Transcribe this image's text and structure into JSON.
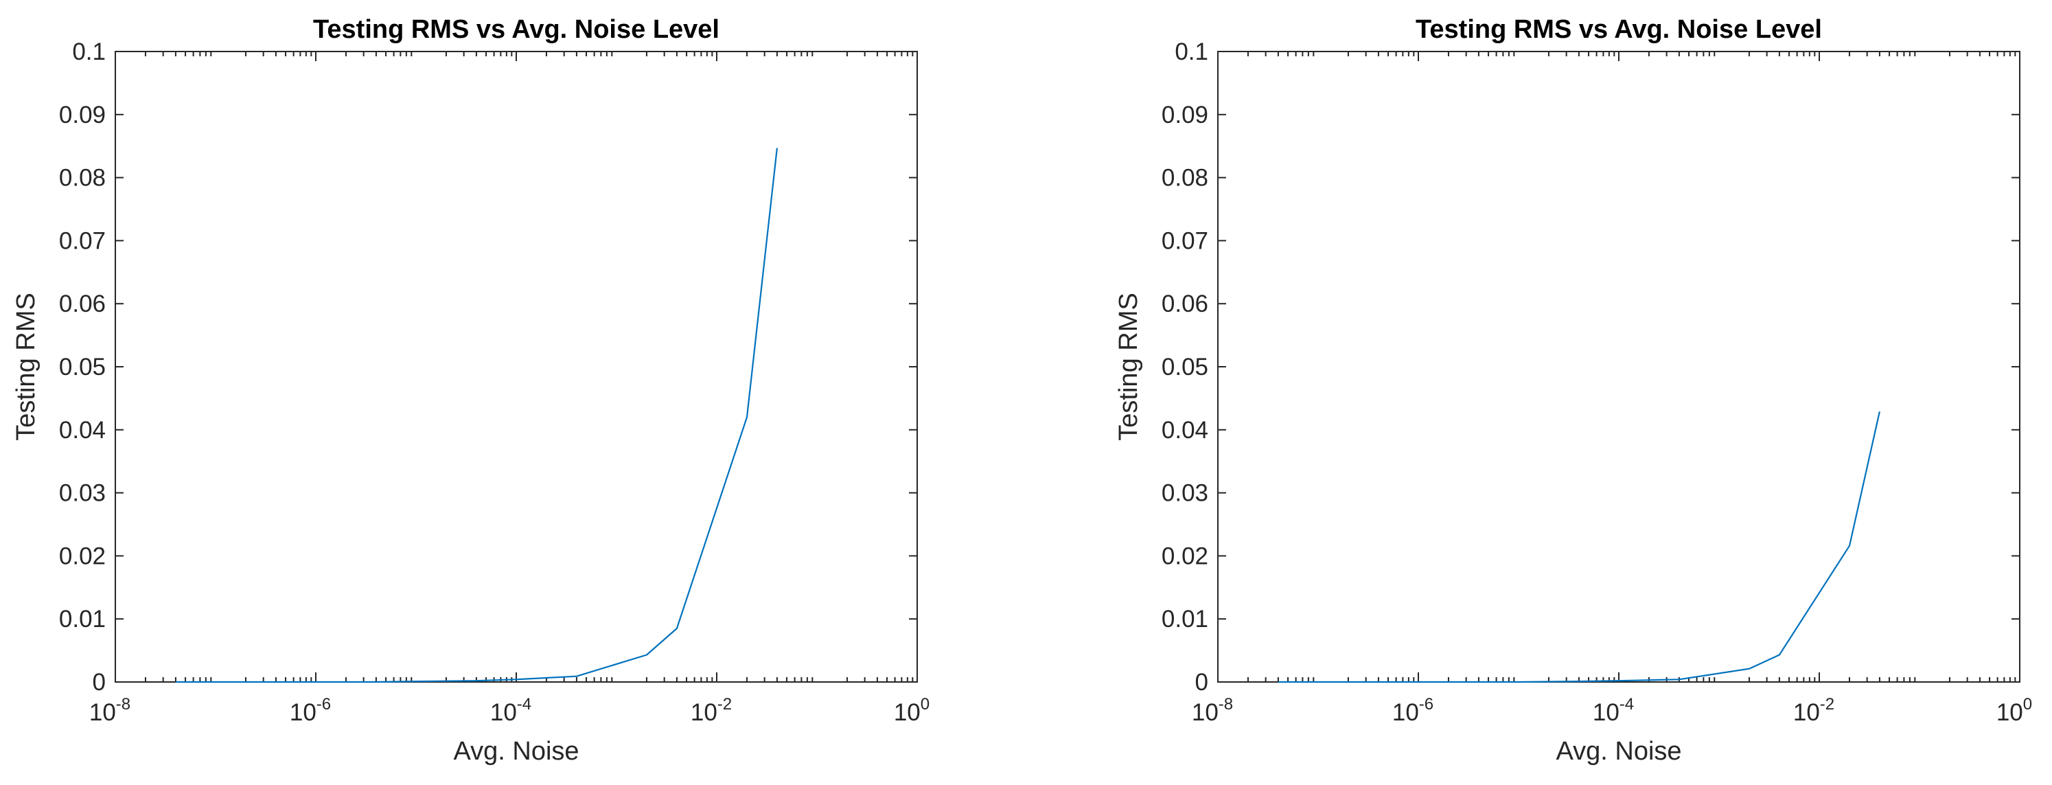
{
  "chart_data": [
    {
      "type": "line",
      "title": "Testing RMS vs Avg. Noise Level",
      "xlabel": "Avg. Noise",
      "ylabel": "Testing RMS",
      "xscale": "log",
      "xlim": [
        1e-08,
        1
      ],
      "ylim": [
        0,
        0.1
      ],
      "grid": false,
      "xticks": [
        {
          "base": "10",
          "exp": "-8"
        },
        {
          "base": "10",
          "exp": "-6"
        },
        {
          "base": "10",
          "exp": "-4"
        },
        {
          "base": "10",
          "exp": "-2"
        },
        {
          "base": "10",
          "exp": "0"
        }
      ],
      "yticks": [
        "0",
        "0.01",
        "0.02",
        "0.03",
        "0.04",
        "0.05",
        "0.06",
        "0.07",
        "0.08",
        "0.09",
        "0.1"
      ],
      "series": [
        {
          "color": "#0072BD",
          "x": [
            4e-08,
            1e-07,
            4e-07,
            1e-06,
            4e-06,
            1e-05,
            4e-05,
            0.0001,
            0.0004,
            0.002,
            0.004,
            0.02,
            0.04
          ],
          "y": [
            0.0,
            0.0,
            0.0,
            0.0,
            0.0,
            0.0001,
            0.0002,
            0.0004,
            0.0009,
            0.0043,
            0.0085,
            0.042,
            0.0847
          ]
        }
      ]
    },
    {
      "type": "line",
      "title": "Testing RMS vs Avg. Noise Level",
      "xlabel": "Avg. Noise",
      "ylabel": "Testing RMS",
      "xscale": "log",
      "xlim": [
        1e-08,
        1
      ],
      "ylim": [
        0,
        0.1
      ],
      "grid": false,
      "xticks": [
        {
          "base": "10",
          "exp": "-8"
        },
        {
          "base": "10",
          "exp": "-6"
        },
        {
          "base": "10",
          "exp": "-4"
        },
        {
          "base": "10",
          "exp": "-2"
        },
        {
          "base": "10",
          "exp": "0"
        }
      ],
      "yticks": [
        "0",
        "0.01",
        "0.02",
        "0.03",
        "0.04",
        "0.05",
        "0.06",
        "0.07",
        "0.08",
        "0.09",
        "0.1"
      ],
      "series": [
        {
          "color": "#0072BD",
          "x": [
            4e-08,
            1e-07,
            4e-07,
            1e-06,
            4e-06,
            1e-05,
            4e-05,
            0.0001,
            0.0004,
            0.002,
            0.004,
            0.02,
            0.04
          ],
          "y": [
            0.0,
            0.0,
            0.0,
            0.0,
            0.0,
            0.0,
            0.0001,
            0.0002,
            0.0004,
            0.0021,
            0.0043,
            0.0216,
            0.0429
          ]
        }
      ]
    }
  ]
}
